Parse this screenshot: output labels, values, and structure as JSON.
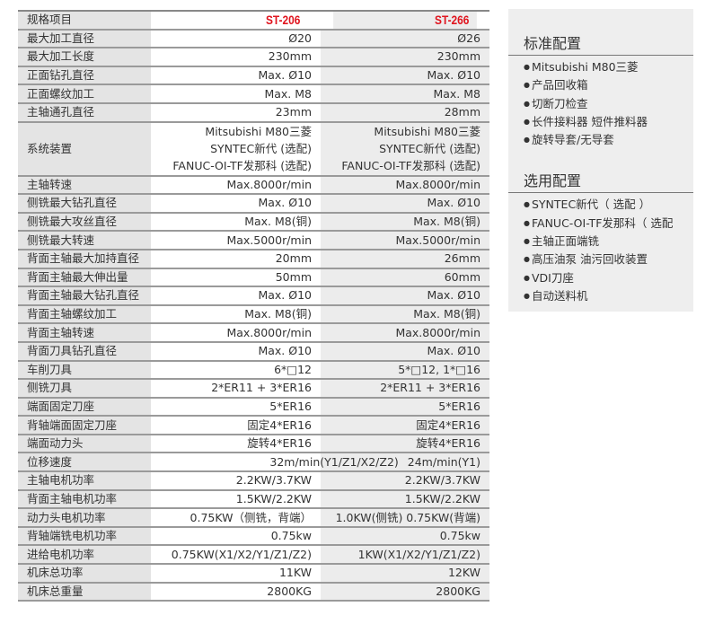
{
  "table": {
    "header": [
      "规格项目",
      "ST-206",
      "ST-266"
    ],
    "rows": [
      [
        "最大加工直径",
        "Ø20",
        "Ø26"
      ],
      [
        "最大加工长度",
        "230mm",
        "230mm"
      ],
      [
        "正面钻孔直径",
        "Max. Ø10",
        "Max. Ø10"
      ],
      [
        "正面螺纹加工",
        "Max. M8",
        "Max. M8"
      ],
      [
        "主轴通孔直径",
        "23mm",
        "28mm"
      ]
    ],
    "system": {
      "label": "系统装置",
      "a": [
        "Mitsubishi M80三菱",
        "SYNTEC新代 (选配)",
        "FANUC-OI-TF发那科 (选配)"
      ],
      "b": [
        "Mitsubishi M80三菱",
        "SYNTEC新代 (选配)",
        "FANUC-OI-TF发那科 (选配)"
      ]
    },
    "rows2": [
      [
        "主轴转速",
        "Max.8000r/min",
        "Max.8000r/min"
      ],
      [
        "侧铣最大钻孔直径",
        "Max. Ø10",
        "Max. Ø10"
      ],
      [
        "侧铣最大攻丝直径",
        "Max. M8(铜)",
        "Max. M8(铜)"
      ],
      [
        "侧铣最大转速",
        "Max.5000r/min",
        "Max.5000r/min"
      ],
      [
        "背面主轴最大加持直径",
        "20mm",
        "26mm"
      ],
      [
        "背面主轴最大伸出量",
        "50mm",
        "60mm"
      ],
      [
        "背面主轴最大钻孔直径",
        "Max. Ø10",
        "Max. Ø10"
      ],
      [
        "背面主轴螺纹加工",
        "Max. M8(铜)",
        "Max. M8(铜)"
      ],
      [
        "背面主轴转速",
        "Max.8000r/min",
        "Max.8000r/min"
      ],
      [
        "背面刀具钻孔直径",
        "Max. Ø10",
        "Max. Ø10"
      ],
      [
        "车削刀具",
        "6*□12",
        "5*□12, 1*□16"
      ],
      [
        "侧铣刀具",
        "2*ER11 + 3*ER16",
        "2*ER11 + 3*ER16"
      ],
      [
        "端面固定刀座",
        "5*ER16",
        "5*ER16"
      ],
      [
        "背轴端面固定刀座",
        "固定4*ER16",
        "固定4*ER16"
      ],
      [
        "端面动力头",
        "旋转4*ER16",
        "旋转4*ER16"
      ]
    ],
    "speed": {
      "label": "位移速度",
      "a": "32m/min(Y1/Z1/X2/Z2)",
      "b": "24m/min(Y1)"
    },
    "rows3": [
      [
        "主轴电机功率",
        "2.2KW/3.7KW",
        "2.2KW/3.7KW"
      ],
      [
        "背面主轴电机功率",
        "1.5KW/2.2KW",
        "1.5KW/2.2KW"
      ],
      [
        "动力头电机功率",
        "0.75KW（侧铣，背端）",
        "1.0KW(侧铣) 0.75KW(背端)"
      ],
      [
        "背轴端铣电机功率",
        "0.75kw",
        "0.75kw"
      ],
      [
        "进给电机功率",
        "0.75KW(X1/X2/Y1/Z1/Z2)",
        "1KW(X1/X2/Y1/Z1/Z2)"
      ],
      [
        "机床总功率",
        "11KW",
        "12KW"
      ],
      [
        "机床总重量",
        "2800KG",
        "2800KG"
      ]
    ]
  },
  "panel": {
    "standard_title": "标准配置",
    "standard": [
      "Mitsubishi M80三菱",
      "产品回收箱",
      "切断刀检查",
      "长件接料器 短件推料器",
      "旋转导套/无导套"
    ],
    "optional_title": "选用配置",
    "optional": [
      "SYNTEC新代（ 选配 ）",
      "FANUC-OI-TF发那科（ 选配",
      "主轴正面端铣",
      "高压油泵 油污回收装置",
      "VDI刀座",
      "自动送料机"
    ]
  },
  "colors": {
    "model_red": "#e0141e"
  }
}
